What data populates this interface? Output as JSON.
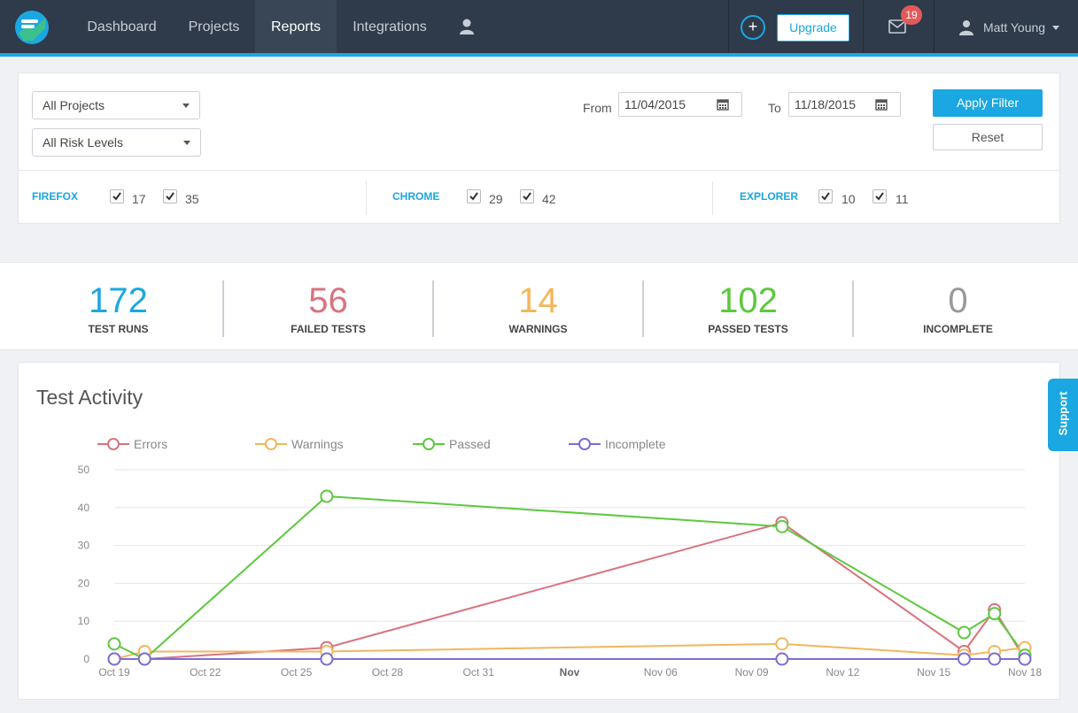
{
  "nav": {
    "items": [
      "Dashboard",
      "Projects",
      "Reports",
      "Integrations"
    ],
    "active": "Reports",
    "upgrade_label": "Upgrade",
    "plus_label": "+",
    "notification_count": "19",
    "user_name": "Matt Young"
  },
  "filters": {
    "project_select": "All Projects",
    "risk_select": "All Risk Levels",
    "from_label": "From",
    "from_value": "11/04/2015",
    "to_label": "To",
    "to_value": "11/18/2015",
    "apply_label": "Apply Filter",
    "reset_label": "Reset",
    "browsers": [
      {
        "name": "FIREFOX",
        "versions": [
          "17",
          "35"
        ]
      },
      {
        "name": "CHROME",
        "versions": [
          "29",
          "42"
        ]
      },
      {
        "name": "EXPLORER",
        "versions": [
          "10",
          "11"
        ]
      }
    ]
  },
  "stats": [
    {
      "value": "172",
      "label": "TEST RUNS",
      "color": "#1ba7e1"
    },
    {
      "value": "56",
      "label": "FAILED TESTS",
      "color": "#d9737e"
    },
    {
      "value": "14",
      "label": "WARNINGS",
      "color": "#f2b65c"
    },
    {
      "value": "102",
      "label": "PASSED TESTS",
      "color": "#5cc93e"
    },
    {
      "value": "0",
      "label": "INCOMPLETE",
      "color": "#999999"
    }
  ],
  "support_label": "Support",
  "chart_data": {
    "type": "line",
    "title": "Test Activity",
    "xlabel": "",
    "ylabel": "",
    "ylim": [
      0,
      50
    ],
    "yticks": [
      "0",
      "10",
      "20",
      "30",
      "40",
      "50"
    ],
    "xlim": [
      "2015-10-19",
      "2015-11-18"
    ],
    "xticks": [
      {
        "label": "Oct 19",
        "date": "2015-10-19",
        "bold": false
      },
      {
        "label": "Oct 22",
        "date": "2015-10-22",
        "bold": false
      },
      {
        "label": "Oct 25",
        "date": "2015-10-25",
        "bold": false
      },
      {
        "label": "Oct 28",
        "date": "2015-10-28",
        "bold": false
      },
      {
        "label": "Oct 31",
        "date": "2015-10-31",
        "bold": false
      },
      {
        "label": "Nov",
        "date": "2015-11-03",
        "bold": true
      },
      {
        "label": "Nov 06",
        "date": "2015-11-06",
        "bold": false
      },
      {
        "label": "Nov 09",
        "date": "2015-11-09",
        "bold": false
      },
      {
        "label": "Nov 12",
        "date": "2015-11-12",
        "bold": false
      },
      {
        "label": "Nov 15",
        "date": "2015-11-15",
        "bold": false
      },
      {
        "label": "Nov 18",
        "date": "2015-11-18",
        "bold": false
      }
    ],
    "grid": true,
    "legend_position": "top-left",
    "series": [
      {
        "name": "Errors",
        "color": "#d9737e",
        "points": [
          [
            "2015-10-19",
            0
          ],
          [
            "2015-10-20",
            0
          ],
          [
            "2015-10-26",
            3
          ],
          [
            "2015-11-10",
            36
          ],
          [
            "2015-11-16",
            2
          ],
          [
            "2015-11-17",
            13
          ],
          [
            "2015-11-18",
            0
          ]
        ]
      },
      {
        "name": "Warnings",
        "color": "#f2b65c",
        "points": [
          [
            "2015-10-19",
            0
          ],
          [
            "2015-10-20",
            2
          ],
          [
            "2015-10-26",
            2
          ],
          [
            "2015-11-10",
            4
          ],
          [
            "2015-11-16",
            1
          ],
          [
            "2015-11-17",
            2
          ],
          [
            "2015-11-18",
            3
          ]
        ]
      },
      {
        "name": "Passed",
        "color": "#5cc93e",
        "points": [
          [
            "2015-10-19",
            4
          ],
          [
            "2015-10-20",
            0
          ],
          [
            "2015-10-26",
            43
          ],
          [
            "2015-11-10",
            35
          ],
          [
            "2015-11-16",
            7
          ],
          [
            "2015-11-17",
            12
          ],
          [
            "2015-11-18",
            1
          ]
        ]
      },
      {
        "name": "Incomplete",
        "color": "#7a6dd6",
        "points": [
          [
            "2015-10-19",
            0
          ],
          [
            "2015-10-20",
            0
          ],
          [
            "2015-10-26",
            0
          ],
          [
            "2015-11-10",
            0
          ],
          [
            "2015-11-16",
            0
          ],
          [
            "2015-11-17",
            0
          ],
          [
            "2015-11-18",
            0
          ]
        ]
      }
    ]
  }
}
